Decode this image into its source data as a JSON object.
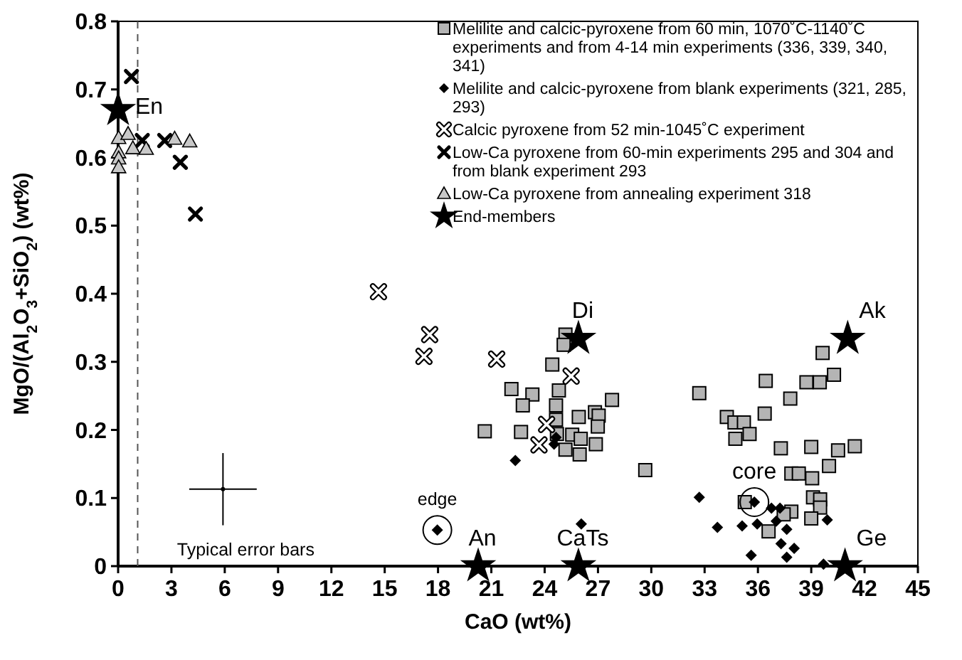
{
  "chart_data": {
    "type": "scatter",
    "xlabel": "CaO (wt%)",
    "ylabel": "MgO/(Al$_{2}$O$_{3}$+SiO$_{2}$) (wt%)",
    "xlim": [
      0,
      45
    ],
    "xticks": [
      0,
      3,
      6,
      9,
      12,
      15,
      18,
      21,
      24,
      27,
      30,
      33,
      36,
      39,
      42,
      45
    ],
    "ylim": [
      0,
      0.8
    ],
    "yticks": [
      {
        "value": 0,
        "label": "0"
      },
      0.1,
      0.2,
      0.3,
      0.4,
      0.5,
      0.6,
      0.7,
      0.8
    ],
    "grid": false,
    "legend": "top right",
    "series": [
      {
        "name": "Melilite and calcic-pyroxene from 60  min, 1070˚C-1140˚C experiments and from 4-14 min experiments (336, 339, 340, 341)",
        "marker": "square",
        "color": "#b4b4b4",
        "x": [
          25.17,
          25.07,
          24.43,
          22.13,
          23.31,
          22.77,
          24.8,
          24.64,
          26.83,
          27.04,
          27.79,
          25.92,
          24.64,
          26.99,
          22.67,
          25.55,
          26.03,
          25.17,
          25.97,
          26.88,
          24.69,
          29.66,
          20.63,
          32.7,
          36.44,
          39.64,
          40.28,
          39.48,
          38.73,
          37.82,
          36.38,
          34.25,
          34.68,
          35.21,
          35.53,
          34.73,
          37.29,
          39.0,
          40.51,
          41.45,
          40.0,
          37.88,
          38.3,
          39.05,
          39.1,
          39.5,
          39.5,
          37.88,
          37.45,
          39.0,
          35.26,
          36.6
        ],
        "values": [
          0.34,
          0.325,
          0.296,
          0.26,
          0.252,
          0.236,
          0.258,
          0.236,
          0.226,
          0.221,
          0.244,
          0.219,
          0.215,
          0.205,
          0.197,
          0.193,
          0.187,
          0.171,
          0.164,
          0.179,
          0.194,
          0.141,
          0.198,
          0.254,
          0.272,
          0.313,
          0.281,
          0.27,
          0.27,
          0.246,
          0.224,
          0.219,
          0.211,
          0.211,
          0.194,
          0.187,
          0.173,
          0.175,
          0.17,
          0.176,
          0.147,
          0.136,
          0.136,
          0.129,
          0.101,
          0.098,
          0.086,
          0.08,
          0.076,
          0.07,
          0.094,
          0.051
        ]
      },
      {
        "name": "Melilite and calcic-pyroxene from blank experiments (321, 285, 293)",
        "marker": "diamond",
        "color": "#000000",
        "x": [
          22.35,
          24.53,
          24.64,
          26.06,
          32.7,
          33.72,
          35.11,
          35.8,
          35.96,
          36.76,
          37.24,
          37.03,
          37.62,
          37.3,
          38.04,
          37.62,
          35.62,
          39.9,
          39.69,
          17.96
        ],
        "values": [
          0.155,
          0.179,
          0.189,
          0.062,
          0.101,
          0.057,
          0.059,
          0.094,
          0.062,
          0.085,
          0.085,
          0.066,
          0.054,
          0.033,
          0.026,
          0.013,
          0.016,
          0.068,
          0.003,
          0.053
        ]
      },
      {
        "name": "Calcic pyroxene from 52  min-1045˚C experiment",
        "marker": "cross",
        "color": "#ffffff",
        "x": [
          14.65,
          17.53,
          17.21,
          21.3,
          25.49,
          24.11,
          23.68
        ],
        "values": [
          0.403,
          0.34,
          0.308,
          0.304,
          0.279,
          0.208,
          0.178
        ]
      },
      {
        "name": "Low-Ca pyroxene from 60-min experiments 295 and 304 and from blank experiment 293",
        "marker": "cross",
        "color": "#000000",
        "x": [
          0.75,
          1.36,
          2.62,
          3.5,
          4.35
        ],
        "values": [
          0.719,
          0.625,
          0.625,
          0.593,
          0.517
        ]
      },
      {
        "name": "Low-Ca pyroxene from annealing experiment 318",
        "marker": "triangle",
        "color": "#c8c8c8",
        "x": [
          0.03,
          0.56,
          0.83,
          1.58,
          3.18,
          4.03,
          0.03,
          0.03,
          0.03
        ],
        "values": [
          0.629,
          0.635,
          0.614,
          0.613,
          0.628,
          0.624,
          0.608,
          0.599,
          0.586
        ]
      },
      {
        "name": "End-members",
        "marker": "star",
        "color": "#000000",
        "x": [
          0,
          25.9,
          41.05,
          40.9,
          25.9,
          20.26
        ],
        "values": [
          0.67,
          0.334,
          0.334,
          0,
          0,
          0
        ]
      },
      {
        "marker": "circle",
        "color": "#000000",
        "x": [
          5.9
        ],
        "values": [
          0.113
        ],
        "errors": [
          0.053
        ],
        "xerrors": [
          1.9
        ]
      }
    ],
    "ref_lines": [
      {
        "axis": "x",
        "value": 1.1,
        "line_style": "dashed",
        "color": "#555555"
      }
    ],
    "annotations": [
      {
        "text": "En",
        "x": 0,
        "y": 0.67
      },
      {
        "text": "Di",
        "x": 25.9,
        "y": 0.334
      },
      {
        "text": "Ak",
        "x": 41.05,
        "y": 0.334
      },
      {
        "text": "Ge",
        "x": 40.9,
        "y": 0
      },
      {
        "text": "CaTs",
        "x": 25.9,
        "y": 0
      },
      {
        "text": "An",
        "x": 20.26,
        "y": 0
      },
      {
        "text": "edge",
        "x": 17.96,
        "y": 0.053
      },
      {
        "text": "core",
        "x": 35.8,
        "y": 0.094
      },
      {
        "text": "Typical error bars",
        "x": 5.9,
        "y": 0.113
      }
    ]
  }
}
